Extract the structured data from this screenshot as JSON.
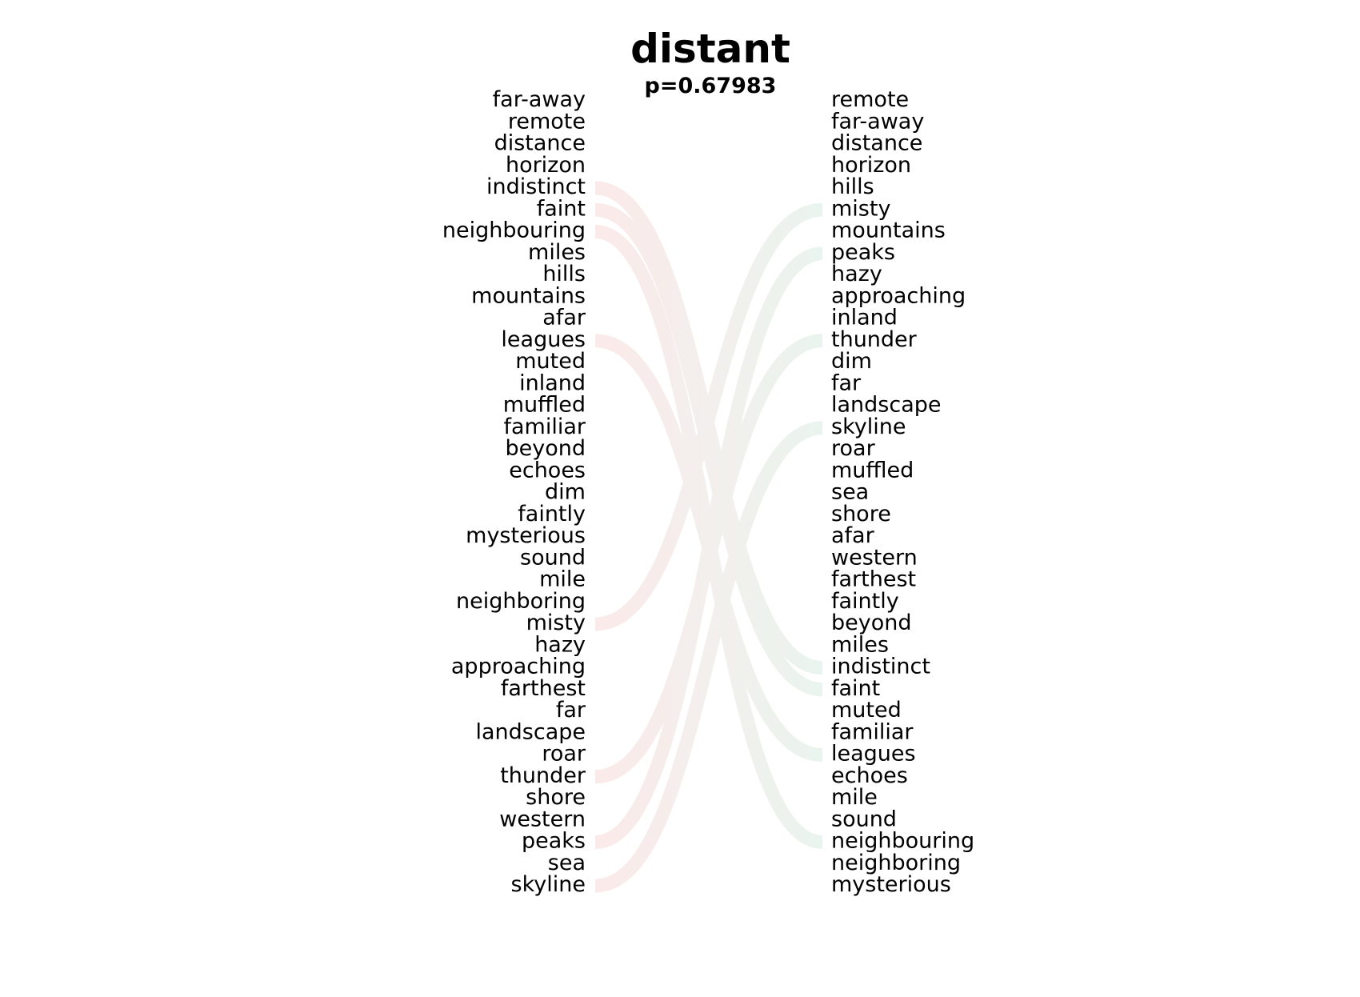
{
  "chart_data": {
    "type": "slope",
    "title": "distant",
    "subtitle": "p=0.67983",
    "left": [
      "far-away",
      "remote",
      "distance",
      "horizon",
      "indistinct",
      "faint",
      "neighbouring",
      "miles",
      "hills",
      "mountains",
      "afar",
      "leagues",
      "muted",
      "inland",
      "muffled",
      "familiar",
      "beyond",
      "echoes",
      "dim",
      "faintly",
      "mysterious",
      "sound",
      "mile",
      "neighboring",
      "misty",
      "hazy",
      "approaching",
      "farthest",
      "far",
      "landscape",
      "roar",
      "thunder",
      "shore",
      "western",
      "peaks",
      "sea",
      "skyline"
    ],
    "right": [
      "remote",
      "far-away",
      "distance",
      "horizon",
      "hills",
      "misty",
      "mountains",
      "peaks",
      "hazy",
      "approaching",
      "inland",
      "thunder",
      "dim",
      "far",
      "landscape",
      "skyline",
      "roar",
      "muffled",
      "sea",
      "shore",
      "afar",
      "western",
      "farthest",
      "faintly",
      "beyond",
      "miles",
      "indistinct",
      "faint",
      "muted",
      "familiar",
      "leagues",
      "echoes",
      "mile",
      "sound",
      "neighbouring",
      "neighboring",
      "mysterious"
    ],
    "highlighted_links": [
      "indistinct",
      "faint",
      "neighbouring",
      "leagues",
      "misty",
      "thunder",
      "peaks",
      "skyline"
    ],
    "colors": {
      "decrease": "#fbeaea",
      "increase": "#eaf4ee"
    }
  }
}
